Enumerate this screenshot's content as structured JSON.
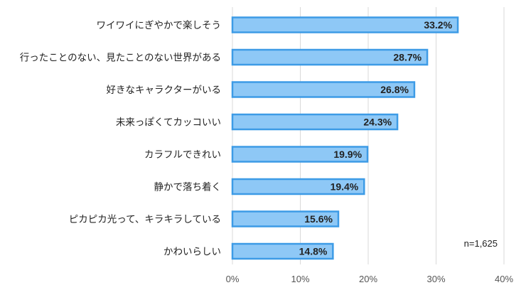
{
  "chart_data": {
    "type": "bar",
    "orientation": "horizontal",
    "categories": [
      "ワイワイにぎやかで楽しそう",
      "行ったことのない、見たことのない世界がある",
      "好きなキャラクターがいる",
      "未来っぽくてカッコいい",
      "カラフルできれい",
      "静かで落ち着く",
      "ピカピカ光って、キラキラしている",
      "かわいらしい"
    ],
    "values": [
      33.2,
      28.7,
      26.8,
      24.3,
      19.9,
      19.4,
      15.6,
      14.8
    ],
    "value_labels": [
      "33.2%",
      "28.7%",
      "26.8%",
      "24.3%",
      "19.9%",
      "19.4%",
      "15.6%",
      "14.8%"
    ],
    "xlim": [
      0,
      40
    ],
    "xticks": [
      0,
      10,
      20,
      30,
      40
    ],
    "xtick_labels": [
      "0%",
      "10%",
      "20%",
      "30%",
      "40%"
    ],
    "grid": "vertical",
    "legend": "none",
    "note": "n=1,625",
    "colors": {
      "bar_fill": "#8ec8f6",
      "bar_edge": "#3d9be6",
      "grid": "#d9d9d9"
    }
  }
}
